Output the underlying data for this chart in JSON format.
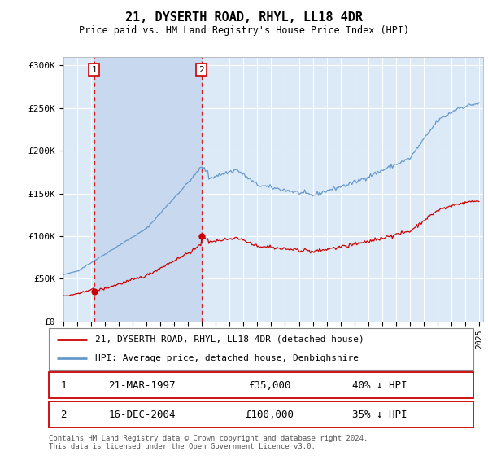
{
  "title": "21, DYSERTH ROAD, RHYL, LL18 4DR",
  "subtitle": "Price paid vs. HM Land Registry's House Price Index (HPI)",
  "y_ticks": [
    0,
    50000,
    100000,
    150000,
    200000,
    250000,
    300000
  ],
  "y_tick_labels": [
    "£0",
    "£50K",
    "£100K",
    "£150K",
    "£200K",
    "£250K",
    "£300K"
  ],
  "ylim": [
    0,
    310000
  ],
  "plot_bg_color": "#dce9f7",
  "hpi_color": "#6699cc",
  "price_color": "#cc0000",
  "sale1_year": 1997.21,
  "sale1_price": 35000,
  "sale2_year": 2004.96,
  "sale2_price": 100000,
  "legend_label_red": "21, DYSERTH ROAD, RHYL, LL18 4DR (detached house)",
  "legend_label_blue": "HPI: Average price, detached house, Denbighshire",
  "table_row1": [
    "1",
    "21-MAR-1997",
    "£35,000",
    "40% ↓ HPI"
  ],
  "table_row2": [
    "2",
    "16-DEC-2004",
    "£100,000",
    "35% ↓ HPI"
  ],
  "footnote": "Contains HM Land Registry data © Crown copyright and database right 2024.\nThis data is licensed under the Open Government Licence v3.0.",
  "grid_color": "#ffffff",
  "dashed_line_color": "#cc0000",
  "span_color": "#c8d8ee"
}
